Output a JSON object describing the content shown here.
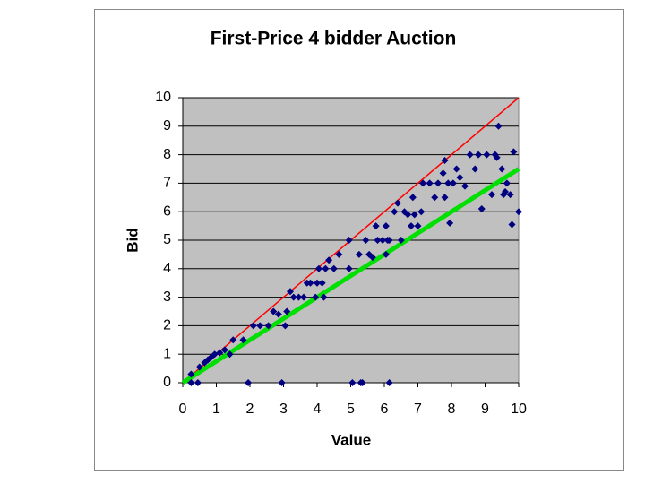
{
  "chart_data": {
    "type": "scatter",
    "title": "First-Price 4 bidder Auction",
    "x_label": "Value",
    "y_label": "Bid",
    "xlim": [
      0,
      10
    ],
    "ylim": [
      0,
      10
    ],
    "xticks": [
      0,
      1,
      2,
      3,
      4,
      5,
      6,
      7,
      8,
      9,
      10
    ],
    "yticks": [
      0,
      1,
      2,
      3,
      4,
      5,
      6,
      7,
      8,
      9,
      10
    ],
    "grid": true,
    "plot_background": "#c0c0c0",
    "series": [
      {
        "type": "scatter",
        "color": "#000080",
        "x": [
          0.25,
          0.45,
          0.25,
          0.5,
          0.65,
          0.75,
          0.85,
          0.95,
          1.1,
          1.25,
          1.4,
          1.5,
          1.8,
          1.95,
          2.1,
          2.3,
          2.55,
          2.7,
          2.85,
          2.95,
          3.05,
          3.1,
          3.2,
          3.3,
          3.45,
          3.6,
          3.7,
          3.8,
          3.95,
          4.0,
          4.05,
          4.15,
          4.2,
          4.25,
          4.35,
          4.5,
          4.65,
          4.95,
          4.95,
          5.05,
          5.3,
          5.35,
          5.25,
          5.45,
          5.55,
          5.65,
          5.75,
          5.8,
          5.95,
          6.05,
          6.1,
          6.15,
          6.15,
          6.05,
          6.3,
          6.4,
          6.5,
          6.6,
          6.7,
          6.8,
          6.85,
          6.9,
          7.0,
          7.1,
          7.15,
          7.35,
          7.5,
          7.6,
          7.75,
          7.8,
          7.8,
          7.9,
          7.95,
          8.05,
          8.15,
          8.25,
          8.4,
          8.55,
          8.7,
          8.8,
          8.9,
          9.05,
          9.2,
          9.3,
          9.35,
          9.4,
          9.5,
          9.55,
          9.6,
          9.65,
          9.75,
          9.8,
          9.85,
          10.0
        ],
        "values": [
          0,
          0,
          0.3,
          0.55,
          0.7,
          0.8,
          0.9,
          1.0,
          1.05,
          1.15,
          1.0,
          1.5,
          1.5,
          0,
          2.0,
          2.0,
          2.0,
          2.5,
          2.4,
          0,
          2.0,
          2.5,
          3.2,
          3.0,
          3.0,
          3.0,
          3.5,
          3.5,
          3.0,
          3.5,
          4.0,
          3.5,
          3.0,
          4.0,
          4.3,
          4.0,
          4.5,
          5.0,
          4.0,
          0,
          0,
          0,
          4.5,
          5.0,
          4.5,
          4.4,
          5.5,
          5.0,
          5.0,
          5.5,
          5.0,
          0,
          5.0,
          4.5,
          6.0,
          6.3,
          5.0,
          6.0,
          5.9,
          5.5,
          6.5,
          5.9,
          5.5,
          6.0,
          7.0,
          7.0,
          6.5,
          7.0,
          7.35,
          6.5,
          7.8,
          7.0,
          5.6,
          7.0,
          7.5,
          7.2,
          6.9,
          8.0,
          7.5,
          8.0,
          6.1,
          8.0,
          6.6,
          8.0,
          7.9,
          9.0,
          7.5,
          6.6,
          6.7,
          7.0,
          6.6,
          5.55,
          8.1,
          6.0
        ]
      },
      {
        "type": "line",
        "color": "#ff0000",
        "x": [
          0,
          10
        ],
        "values": [
          0,
          10
        ]
      },
      {
        "type": "line",
        "color": "#00e000",
        "x": [
          0,
          10
        ],
        "values": [
          0,
          7.5
        ]
      }
    ]
  }
}
